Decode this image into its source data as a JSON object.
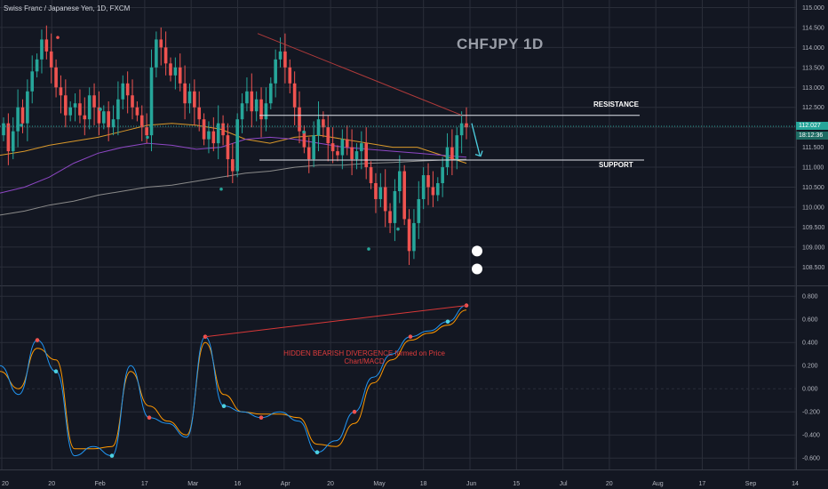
{
  "chart_data": {
    "type": "candlestick",
    "symbol_title": "Swiss Franc / Japanese Yen, 1D, FXCM",
    "title": "CHFJPY 1D",
    "price_axis": {
      "ylim": [
        108.15,
        115.1
      ],
      "ticks": [
        "115.000",
        "114.500",
        "114.000",
        "113.500",
        "113.000",
        "112.500",
        "112.000",
        "111.500",
        "111.000",
        "110.500",
        "110.000",
        "109.500",
        "109.000",
        "108.500"
      ]
    },
    "indicator_axis": {
      "ylim": [
        -0.66,
        0.84
      ],
      "ticks": [
        "0.800",
        "0.600",
        "0.400",
        "0.200",
        "0.000",
        "-0.200",
        "-0.400",
        "-0.600"
      ]
    },
    "x_axis": {
      "ticks": [
        "20",
        "20",
        "Feb",
        "17",
        "Mar",
        "16",
        "Apr",
        "20",
        "May",
        "18",
        "Jun",
        "15",
        "Jul",
        "20",
        "Aug",
        "17",
        "Sep",
        "14"
      ]
    },
    "last_price": "112.027",
    "countdown": "18:12:36",
    "levels": [
      {
        "name": "resistance",
        "label": "RESISTANCE",
        "value": 112.3
      },
      {
        "name": "support",
        "label": "SUPPORT",
        "value": 111.18
      }
    ],
    "annotation": "HIDDEN BEARISH DIVERGENCE formed on Price Chart/MACD",
    "closes": [
      112.1,
      111.4,
      111.9,
      112.5,
      112.1,
      112.9,
      113.4,
      113.7,
      114.2,
      113.9,
      113.5,
      113.0,
      112.8,
      112.3,
      112.5,
      112.6,
      112.3,
      112.2,
      112.8,
      112.5,
      112.1,
      112.4,
      112.0,
      112.2,
      112.7,
      113.1,
      112.8,
      112.5,
      112.3,
      112.0,
      111.8,
      113.5,
      114.2,
      114.0,
      113.6,
      113.3,
      113.5,
      113.1,
      112.6,
      112.9,
      112.5,
      112.2,
      111.7,
      111.9,
      111.6,
      112.1,
      111.8,
      111.2,
      110.9,
      112.2,
      112.6,
      112.9,
      112.4,
      112.7,
      112.2,
      112.6,
      113.1,
      113.7,
      113.9,
      113.5,
      113.1,
      112.5,
      111.9,
      111.5,
      111.2,
      111.8,
      112.2,
      112.0,
      111.6,
      111.4,
      111.3,
      111.7,
      111.5,
      111.2,
      111.4,
      111.6,
      111.0,
      110.6,
      110.2,
      110.5,
      109.9,
      109.6,
      110.4,
      110.9,
      109.7,
      108.9,
      109.6,
      110.2,
      110.8,
      110.5,
      110.3,
      110.6,
      111.0,
      111.5,
      111.2,
      111.8,
      112.1,
      112.0
    ],
    "ma_orange": [
      111.3,
      111.4,
      111.55,
      111.65,
      111.75,
      111.9,
      112.05,
      112.1,
      112.05,
      111.95,
      111.7,
      111.6,
      111.75,
      111.8,
      111.7,
      111.6,
      111.5,
      111.5,
      111.3,
      111.1
    ],
    "ma_purple": [
      110.35,
      110.5,
      110.75,
      111.1,
      111.35,
      111.5,
      111.6,
      111.55,
      111.45,
      111.5,
      111.7,
      111.75,
      111.7,
      111.6,
      111.5,
      111.45,
      111.4,
      111.35,
      111.3,
      111.25
    ],
    "ma_gray": [
      109.8,
      109.9,
      110.05,
      110.15,
      110.3,
      110.4,
      110.5,
      110.55,
      110.65,
      110.75,
      110.85,
      110.9,
      111.0,
      111.05,
      111.05,
      111.1,
      111.12,
      111.15,
      111.18,
      111.2
    ],
    "macd": [
      0.2,
      -0.05,
      0.42,
      0.15,
      -0.58,
      -0.5,
      -0.58,
      0.2,
      -0.25,
      -0.3,
      -0.42,
      0.45,
      -0.15,
      -0.2,
      -0.25,
      -0.2,
      -0.28,
      -0.55,
      -0.45,
      -0.2,
      0.1,
      0.3,
      0.45,
      0.5,
      0.58,
      0.72
    ],
    "signal": [
      0.15,
      0.0,
      0.35,
      0.25,
      -0.52,
      -0.52,
      -0.5,
      0.15,
      -0.15,
      -0.28,
      -0.4,
      0.4,
      -0.05,
      -0.2,
      -0.22,
      -0.22,
      -0.25,
      -0.48,
      -0.5,
      -0.3,
      0.05,
      0.25,
      0.42,
      0.48,
      0.55,
      0.68
    ],
    "grid": true,
    "colors": {
      "background": "#131722",
      "grid": "#2a2e39",
      "up": "#26a69a",
      "down": "#ef5350",
      "ma_orange": "#d9982a",
      "ma_purple": "#8e47c5",
      "ma_gray": "#8a8a8a",
      "macd_line": "#2196f3",
      "signal_line": "#ff9800",
      "annotation": "#e03c3c",
      "level_line": "#e0e3eb",
      "forecast_arrow": "#4dd0e1"
    }
  }
}
